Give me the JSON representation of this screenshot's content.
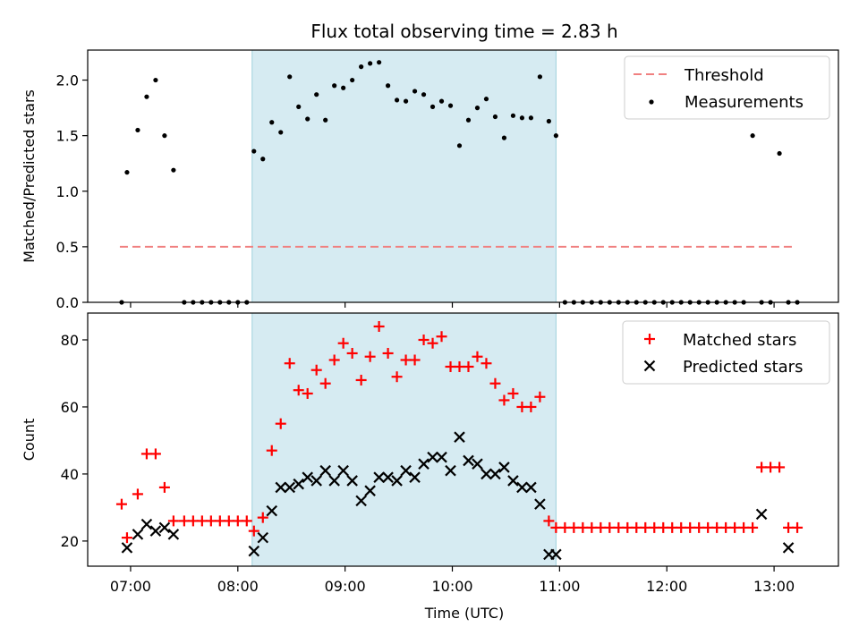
{
  "figure": {
    "title": "Flux total observing time = 2.83 h",
    "xlabel": "Time (UTC)"
  },
  "chart_data": [
    {
      "type": "scatter",
      "ylabel": "Matched/Predicted stars",
      "ylim": [
        0,
        2.27
      ],
      "yticks": [
        0.0,
        0.5,
        1.0,
        1.5,
        2.0
      ],
      "ytick_labels": [
        "0.0",
        "0.5",
        "1.0",
        "1.5",
        "2.0"
      ],
      "xlim": [
        "06:36",
        "13:36"
      ],
      "shaded_span": [
        "08:08",
        "10:58"
      ],
      "shade_color": "#add8e6",
      "legend_position": "top-right",
      "threshold": {
        "name": "Threshold",
        "value": 0.5,
        "x_range": [
          "06:54",
          "13:10"
        ],
        "color": "#f08080",
        "style": "dashed"
      },
      "series": [
        {
          "name": "Measurements",
          "marker": "dot",
          "color": "#000000",
          "x": [
            "06:55",
            "06:58",
            "07:04",
            "07:09",
            "07:14",
            "07:19",
            "07:24",
            "07:30",
            "07:35",
            "07:40",
            "07:45",
            "07:50",
            "07:55",
            "08:00",
            "08:05",
            "08:09",
            "08:14",
            "08:19",
            "08:24",
            "08:29",
            "08:34",
            "08:39",
            "08:44",
            "08:49",
            "08:54",
            "08:59",
            "09:04",
            "09:09",
            "09:14",
            "09:19",
            "09:24",
            "09:29",
            "09:34",
            "09:39",
            "09:44",
            "09:49",
            "09:54",
            "09:59",
            "10:04",
            "10:09",
            "10:14",
            "10:19",
            "10:24",
            "10:29",
            "10:34",
            "10:39",
            "10:44",
            "10:49",
            "10:54",
            "10:58",
            "11:03",
            "11:08",
            "11:13",
            "11:18",
            "11:23",
            "11:28",
            "11:33",
            "11:38",
            "11:43",
            "11:48",
            "11:53",
            "11:58",
            "12:03",
            "12:08",
            "12:13",
            "12:18",
            "12:23",
            "12:28",
            "12:33",
            "12:38",
            "12:43",
            "12:48",
            "12:53",
            "12:58",
            "13:03",
            "13:08",
            "13:13"
          ],
          "values": [
            0,
            1.17,
            1.55,
            1.85,
            2.0,
            1.5,
            1.19,
            0,
            0,
            0,
            0,
            0,
            0,
            0,
            0,
            1.36,
            1.29,
            1.62,
            1.53,
            2.03,
            1.76,
            1.65,
            1.87,
            1.64,
            1.95,
            1.93,
            2.0,
            2.12,
            2.15,
            2.16,
            1.95,
            1.82,
            1.81,
            1.9,
            1.87,
            1.76,
            1.81,
            1.77,
            1.41,
            1.64,
            1.75,
            1.83,
            1.67,
            1.48,
            1.68,
            1.66,
            1.66,
            2.03,
            1.63,
            1.5,
            0,
            0,
            0,
            0,
            0,
            0,
            0,
            0,
            0,
            0,
            0,
            0,
            0,
            0,
            0,
            0,
            0,
            0,
            0,
            0,
            0,
            1.5,
            0,
            0,
            1.34,
            0,
            0
          ]
        }
      ]
    },
    {
      "type": "scatter",
      "ylabel": "Count",
      "ylim": [
        12.5,
        88
      ],
      "yticks": [
        20,
        40,
        60,
        80
      ],
      "ytick_labels": [
        "20",
        "40",
        "60",
        "80"
      ],
      "xlim": [
        "06:36",
        "13:36"
      ],
      "xticks": [
        "07:00",
        "08:00",
        "09:00",
        "10:00",
        "11:00",
        "12:00",
        "13:00"
      ],
      "xtick_labels": [
        "07:00",
        "08:00",
        "09:00",
        "10:00",
        "11:00",
        "12:00",
        "13:00"
      ],
      "shaded_span": [
        "08:08",
        "10:58"
      ],
      "shade_color": "#add8e6",
      "legend_position": "top-right",
      "series": [
        {
          "name": "Matched stars",
          "marker": "plus",
          "color": "#ff0000",
          "x": [
            "06:55",
            "06:58",
            "07:04",
            "07:09",
            "07:14",
            "07:19",
            "07:24",
            "07:30",
            "07:35",
            "07:40",
            "07:45",
            "07:50",
            "07:55",
            "08:00",
            "08:05",
            "08:09",
            "08:14",
            "08:19",
            "08:24",
            "08:29",
            "08:34",
            "08:39",
            "08:44",
            "08:49",
            "08:54",
            "08:59",
            "09:04",
            "09:09",
            "09:14",
            "09:19",
            "09:24",
            "09:29",
            "09:34",
            "09:39",
            "09:44",
            "09:49",
            "09:54",
            "09:59",
            "10:04",
            "10:09",
            "10:14",
            "10:19",
            "10:24",
            "10:29",
            "10:34",
            "10:39",
            "10:44",
            "10:49",
            "10:54",
            "10:58",
            "11:03",
            "11:08",
            "11:13",
            "11:18",
            "11:23",
            "11:28",
            "11:33",
            "11:38",
            "11:43",
            "11:48",
            "11:53",
            "11:58",
            "12:03",
            "12:08",
            "12:13",
            "12:18",
            "12:23",
            "12:28",
            "12:33",
            "12:38",
            "12:43",
            "12:48",
            "12:53",
            "12:58",
            "13:03",
            "13:08",
            "13:13"
          ],
          "values": [
            31,
            21,
            34,
            46,
            46,
            36,
            26,
            26,
            26,
            26,
            26,
            26,
            26,
            26,
            26,
            23,
            27,
            47,
            55,
            73,
            65,
            64,
            71,
            67,
            74,
            79,
            76,
            68,
            75,
            84,
            76,
            69,
            74,
            74,
            80,
            79,
            81,
            72,
            72,
            72,
            75,
            73,
            67,
            62,
            64,
            60,
            60,
            63,
            26,
            24,
            24,
            24,
            24,
            24,
            24,
            24,
            24,
            24,
            24,
            24,
            24,
            24,
            24,
            24,
            24,
            24,
            24,
            24,
            24,
            24,
            24,
            24,
            42,
            42,
            42,
            24,
            24
          ]
        },
        {
          "name": "Predicted stars",
          "marker": "x",
          "color": "#000000",
          "x": [
            "06:58",
            "07:04",
            "07:09",
            "07:14",
            "07:19",
            "07:24",
            "08:09",
            "08:14",
            "08:19",
            "08:24",
            "08:29",
            "08:34",
            "08:39",
            "08:44",
            "08:49",
            "08:54",
            "08:59",
            "09:04",
            "09:09",
            "09:14",
            "09:19",
            "09:24",
            "09:29",
            "09:34",
            "09:39",
            "09:44",
            "09:49",
            "09:54",
            "09:59",
            "10:04",
            "10:09",
            "10:14",
            "10:19",
            "10:24",
            "10:29",
            "10:34",
            "10:39",
            "10:44",
            "10:49",
            "10:54",
            "10:58",
            "12:53",
            "13:08"
          ],
          "values": [
            18,
            22,
            25,
            23,
            24,
            22,
            17,
            21,
            29,
            36,
            36,
            37,
            39,
            38,
            41,
            38,
            41,
            38,
            32,
            35,
            39,
            39,
            38,
            41,
            39,
            43,
            45,
            45,
            41,
            51,
            44,
            43,
            40,
            40,
            42,
            38,
            36,
            36,
            31,
            16,
            16,
            28,
            18
          ]
        }
      ]
    }
  ]
}
